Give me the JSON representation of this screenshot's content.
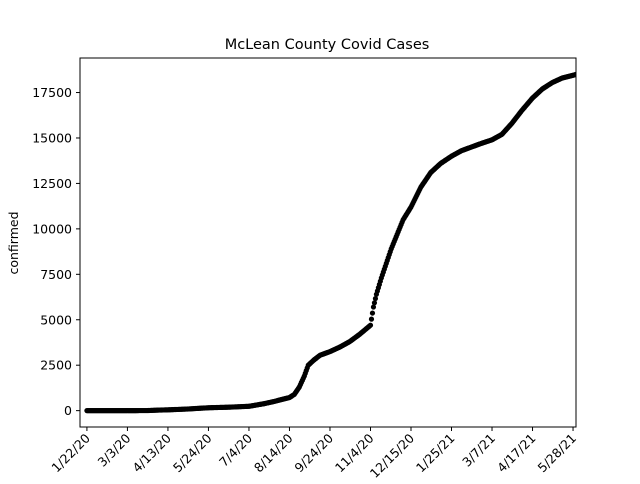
{
  "chart_data": {
    "type": "scatter",
    "title": "McLean County Covid Cases",
    "xlabel": "",
    "ylabel": "confirmed",
    "x_start_date": "2020-01-22",
    "xlim": [
      "2020-01-15",
      "2021-05-31"
    ],
    "ylim": [
      -900,
      19400
    ],
    "grid": false,
    "marker_color": "#000000",
    "x_ticks": [
      {
        "date": "2020-01-22",
        "label": "1/22/20"
      },
      {
        "date": "2020-03-03",
        "label": "3/3/20"
      },
      {
        "date": "2020-04-13",
        "label": "4/13/20"
      },
      {
        "date": "2020-05-24",
        "label": "5/24/20"
      },
      {
        "date": "2020-07-04",
        "label": "7/4/20"
      },
      {
        "date": "2020-08-14",
        "label": "8/14/20"
      },
      {
        "date": "2020-09-24",
        "label": "9/24/20"
      },
      {
        "date": "2020-11-04",
        "label": "11/4/20"
      },
      {
        "date": "2020-12-15",
        "label": "12/15/20"
      },
      {
        "date": "2021-01-25",
        "label": "1/25/21"
      },
      {
        "date": "2021-03-07",
        "label": "3/7/21"
      },
      {
        "date": "2021-04-17",
        "label": "4/17/21"
      },
      {
        "date": "2021-05-28",
        "label": "5/28/21"
      }
    ],
    "y_ticks": [
      0,
      2500,
      5000,
      7500,
      10000,
      12500,
      15000,
      17500
    ],
    "series": [
      {
        "name": "",
        "points": [
          [
            "2020-01-22",
            0
          ],
          [
            "2020-03-03",
            0
          ],
          [
            "2020-03-23",
            5
          ],
          [
            "2020-04-03",
            30
          ],
          [
            "2020-04-13",
            45
          ],
          [
            "2020-05-03",
            90
          ],
          [
            "2020-05-24",
            160
          ],
          [
            "2020-06-13",
            190
          ],
          [
            "2020-07-04",
            240
          ],
          [
            "2020-07-19",
            380
          ],
          [
            "2020-07-29",
            500
          ],
          [
            "2020-08-08",
            640
          ],
          [
            "2020-08-14",
            720
          ],
          [
            "2020-08-19",
            900
          ],
          [
            "2020-08-24",
            1300
          ],
          [
            "2020-08-29",
            1900
          ],
          [
            "2020-09-02",
            2500
          ],
          [
            "2020-09-08",
            2800
          ],
          [
            "2020-09-14",
            3050
          ],
          [
            "2020-09-24",
            3250
          ],
          [
            "2020-10-04",
            3500
          ],
          [
            "2020-10-14",
            3800
          ],
          [
            "2020-10-24",
            4200
          ],
          [
            "2020-11-04",
            4700
          ],
          [
            "2020-11-07",
            5700
          ],
          [
            "2020-11-10",
            6400
          ],
          [
            "2020-11-15",
            7300
          ],
          [
            "2020-11-20",
            8100
          ],
          [
            "2020-11-25",
            8900
          ],
          [
            "2020-12-01",
            9700
          ],
          [
            "2020-12-07",
            10500
          ],
          [
            "2020-12-15",
            11200
          ],
          [
            "2020-12-25",
            12300
          ],
          [
            "2021-01-04",
            13100
          ],
          [
            "2021-01-14",
            13600
          ],
          [
            "2021-01-25",
            14000
          ],
          [
            "2021-02-04",
            14300
          ],
          [
            "2021-02-14",
            14500
          ],
          [
            "2021-02-24",
            14700
          ],
          [
            "2021-03-07",
            14900
          ],
          [
            "2021-03-17",
            15200
          ],
          [
            "2021-03-27",
            15800
          ],
          [
            "2021-04-06",
            16500
          ],
          [
            "2021-04-17",
            17200
          ],
          [
            "2021-04-27",
            17700
          ],
          [
            "2021-05-07",
            18050
          ],
          [
            "2021-05-17",
            18300
          ],
          [
            "2021-05-28",
            18450
          ],
          [
            "2021-05-31",
            18500
          ]
        ]
      }
    ]
  }
}
